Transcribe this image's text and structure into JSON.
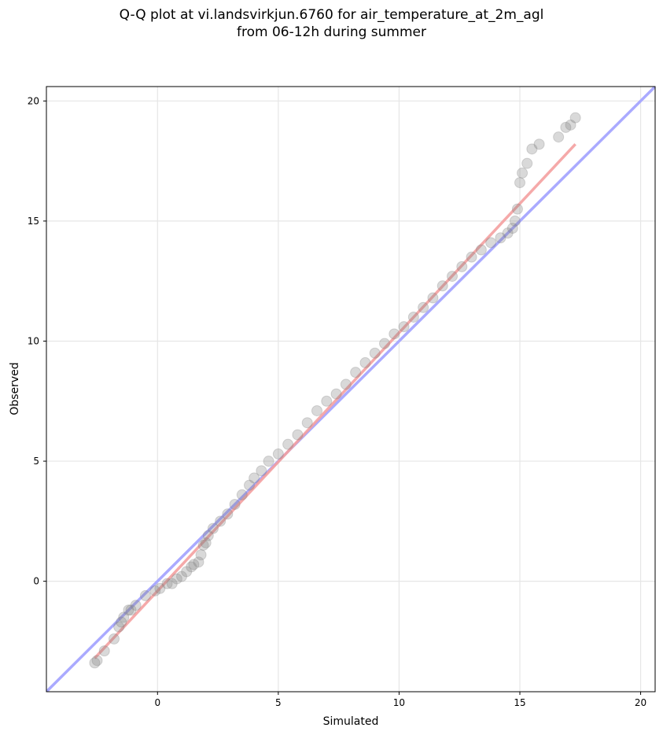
{
  "chart_data": {
    "type": "scatter",
    "title_line1": "Q-Q plot at vi.landsvirkjun.6760 for air_temperature_at_2m_agl",
    "title_line2": "from 06-12h during summer",
    "xlabel": "Simulated",
    "ylabel": "Observed",
    "xlim": [
      -4.6,
      20.6
    ],
    "ylim": [
      -4.6,
      20.6
    ],
    "xticks": [
      0,
      5,
      10,
      15,
      20
    ],
    "yticks": [
      0,
      5,
      10,
      15,
      20
    ],
    "grid": true,
    "legend": "none",
    "reference_line": {
      "from": [
        -4.6,
        -4.6
      ],
      "to": [
        20.6,
        20.6
      ],
      "color": "#aaaaff"
    },
    "fit_line": {
      "from": [
        -2.6,
        -3.2
      ],
      "to": [
        17.3,
        18.2
      ],
      "color": "#f4a0a0"
    },
    "point_color": "#808080",
    "quantiles": {
      "x": [
        -2.6,
        -2.5,
        -2.2,
        -1.8,
        -1.6,
        -1.5,
        -1.4,
        -1.2,
        -1.1,
        -0.9,
        -0.5,
        -0.1,
        0.1,
        0.4,
        0.6,
        0.8,
        1.0,
        1.2,
        1.4,
        1.5,
        1.7,
        1.8,
        1.9,
        2.0,
        2.1,
        2.3,
        2.6,
        2.9,
        3.2,
        3.5,
        3.8,
        4.0,
        4.3,
        4.6,
        5.0,
        5.4,
        5.8,
        6.2,
        6.6,
        7.0,
        7.4,
        7.8,
        8.2,
        8.6,
        9.0,
        9.4,
        9.8,
        10.2,
        10.6,
        11.0,
        11.4,
        11.8,
        12.2,
        12.6,
        13.0,
        13.4,
        13.8,
        14.2,
        14.5,
        14.7,
        14.8,
        14.9,
        15.0,
        15.1,
        15.3,
        15.5,
        15.8,
        16.6,
        16.9,
        17.1,
        17.3
      ],
      "y": [
        -3.4,
        -3.3,
        -2.9,
        -2.4,
        -1.9,
        -1.7,
        -1.5,
        -1.2,
        -1.2,
        -1.0,
        -0.6,
        -0.4,
        -0.3,
        -0.1,
        -0.1,
        0.1,
        0.2,
        0.4,
        0.6,
        0.7,
        0.8,
        1.1,
        1.5,
        1.6,
        1.9,
        2.2,
        2.5,
        2.8,
        3.2,
        3.6,
        4.0,
        4.3,
        4.6,
        5.0,
        5.3,
        5.7,
        6.1,
        6.6,
        7.1,
        7.5,
        7.8,
        8.2,
        8.7,
        9.1,
        9.5,
        9.9,
        10.3,
        10.6,
        11.0,
        11.4,
        11.8,
        12.3,
        12.7,
        13.1,
        13.5,
        13.8,
        14.1,
        14.3,
        14.5,
        14.7,
        15.0,
        15.5,
        16.6,
        17.0,
        17.4,
        18.0,
        18.2,
        18.5,
        18.9,
        19.0,
        19.3
      ]
    }
  }
}
